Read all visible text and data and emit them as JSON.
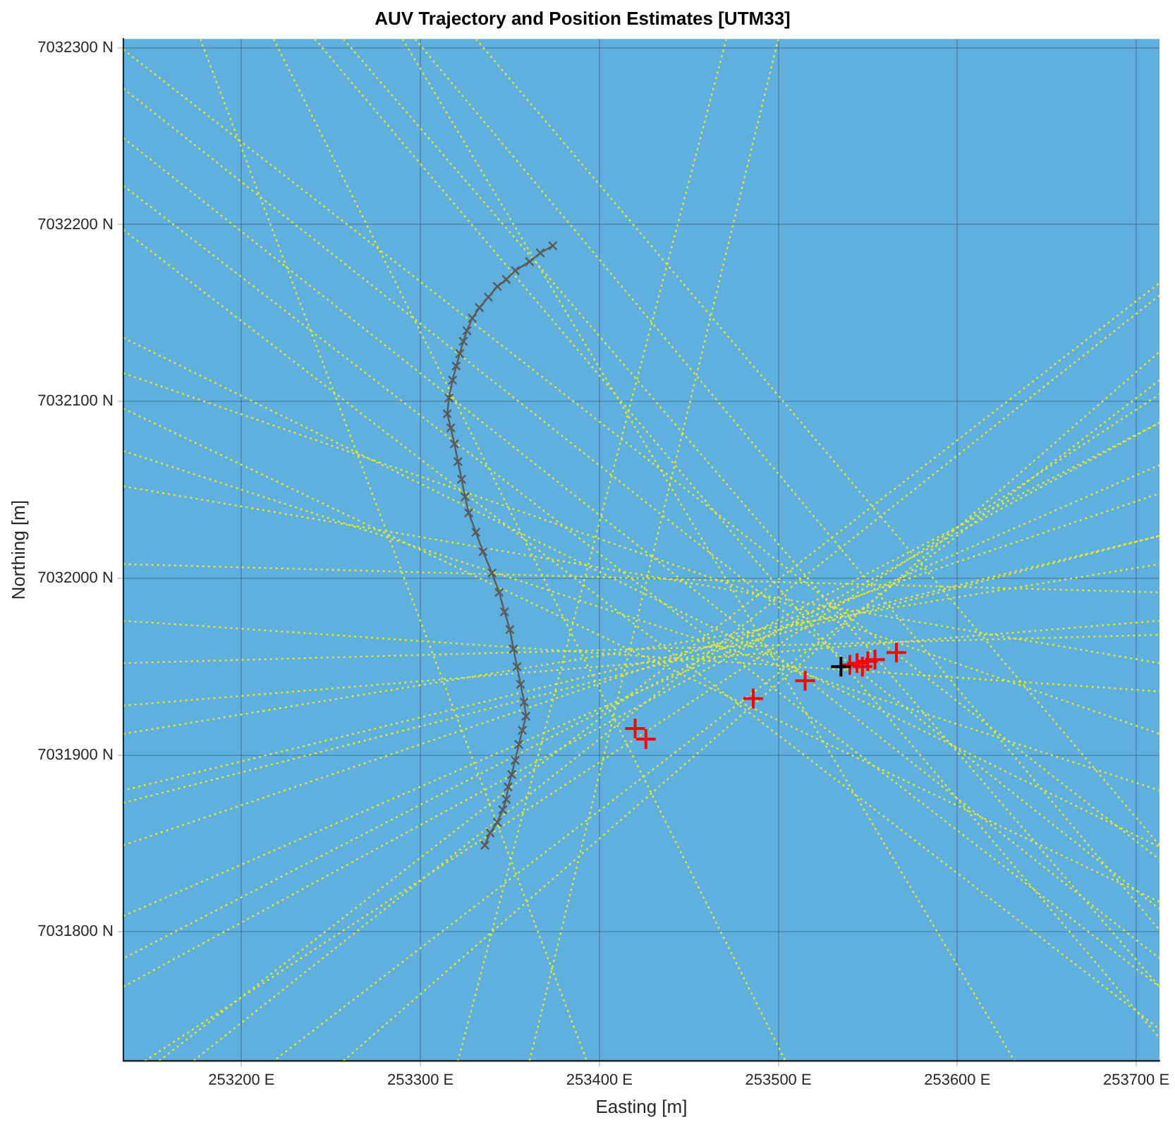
{
  "chart_data": {
    "type": "line",
    "title": "AUV Trajectory and Position Estimates [UTM33]",
    "xlabel": "Easting [m]",
    "ylabel": "Northing [m]",
    "xlim": [
      253134,
      253713
    ],
    "ylim": [
      7031727,
      7032305
    ],
    "xticks": [
      {
        "value": 253200,
        "label": "253200 E"
      },
      {
        "value": 253300,
        "label": "253300 E"
      },
      {
        "value": 253400,
        "label": "253400 E"
      },
      {
        "value": 253500,
        "label": "253500 E"
      },
      {
        "value": 253600,
        "label": "253600 E"
      },
      {
        "value": 253700,
        "label": "253700 E"
      }
    ],
    "yticks": [
      {
        "value": 7031800,
        "label": "7031800 N"
      },
      {
        "value": 7031900,
        "label": "7031900 N"
      },
      {
        "value": 7032000,
        "label": "7032000 N"
      },
      {
        "value": 7032100,
        "label": "7032100 N"
      },
      {
        "value": 7032200,
        "label": "7032200 N"
      },
      {
        "value": 7032300,
        "label": "7032300 N"
      }
    ],
    "grid": true,
    "legend": false,
    "marker": "none",
    "line_style": "dotted",
    "series": [
      {
        "type": "line",
        "color": "#e8e830",
        "x": [
          253134,
          253713
        ],
        "values": [
          7032277,
          7031813
        ]
      },
      {
        "type": "line",
        "color": "#e8e830",
        "x": [
          253134,
          253713
        ],
        "values": [
          7032249,
          7031785
        ]
      },
      {
        "type": "line",
        "color": "#e8e830",
        "x": [
          253134,
          253713
        ],
        "values": [
          7032222,
          7031769
        ]
      },
      {
        "type": "line",
        "color": "#e8e830",
        "x": [
          253134,
          253713
        ],
        "values": [
          7032197,
          7031745
        ]
      },
      {
        "type": "line",
        "color": "#e8e830",
        "x": [
          253134,
          253713
        ],
        "values": [
          7032136,
          7031848
        ]
      },
      {
        "type": "line",
        "color": "#e8e830",
        "x": [
          253134,
          253713
        ],
        "values": [
          7032116,
          7031912
        ]
      },
      {
        "type": "line",
        "color": "#e8e830",
        "x": [
          253134,
          253713
        ],
        "values": [
          7032096,
          7031817
        ]
      },
      {
        "type": "line",
        "color": "#e8e830",
        "x": [
          253134,
          253713
        ],
        "values": [
          7032072,
          7031880
        ]
      },
      {
        "type": "line",
        "color": "#e8e830",
        "x": [
          253134,
          253713
        ],
        "values": [
          7032052,
          7031952
        ]
      },
      {
        "type": "line",
        "color": "#e8e830",
        "x": [
          253134,
          253713
        ],
        "values": [
          7032008,
          7031992
        ]
      },
      {
        "type": "line",
        "color": "#e8e830",
        "x": [
          253134,
          253713
        ],
        "values": [
          7031976,
          7031936
        ]
      },
      {
        "type": "line",
        "color": "#e8e830",
        "x": [
          253134,
          253713
        ],
        "values": [
          7031952,
          7031968
        ]
      },
      {
        "type": "line",
        "color": "#e8e830",
        "x": [
          253134,
          253713
        ],
        "values": [
          7031928,
          7031976
        ]
      },
      {
        "type": "line",
        "color": "#e8e830",
        "x": [
          253134,
          253713
        ],
        "values": [
          7031912,
          7032008
        ]
      },
      {
        "type": "line",
        "color": "#e8e830",
        "x": [
          253134,
          253713
        ],
        "values": [
          7031873,
          7032024
        ]
      },
      {
        "type": "line",
        "color": "#e8e830",
        "x": [
          253134,
          253713
        ],
        "values": [
          7031849,
          7032048
        ]
      },
      {
        "type": "line",
        "color": "#e8e830",
        "x": [
          253134,
          253713
        ],
        "values": [
          7031809,
          7032064
        ]
      },
      {
        "type": "line",
        "color": "#e8e830",
        "x": [
          253134,
          253713
        ],
        "values": [
          7031769,
          7032088
        ]
      },
      {
        "type": "line",
        "color": "#e8e830",
        "x": [
          253146,
          253713
        ],
        "values": [
          7031727,
          7032104
        ]
      },
      {
        "type": "line",
        "color": "#e8e830",
        "x": [
          253154,
          253713
        ],
        "values": [
          7031727,
          7032167
        ]
      },
      {
        "type": "line",
        "color": "#e8e830",
        "x": [
          253257,
          253713
        ],
        "values": [
          7031727,
          7032128
        ]
      },
      {
        "type": "line",
        "color": "#e8e830",
        "x": [
          253177,
          253393
        ],
        "values": [
          7032305,
          7031727
        ]
      },
      {
        "type": "line",
        "color": "#e8e830",
        "x": [
          253218,
          253504
        ],
        "values": [
          7032305,
          7031727
        ]
      },
      {
        "type": "line",
        "color": "#e8e830",
        "x": [
          253241,
          253713
        ],
        "values": [
          7032305,
          7031740
        ]
      },
      {
        "type": "line",
        "color": "#e8e830",
        "x": [
          253257,
          253713
        ],
        "values": [
          7032305,
          7031769
        ]
      },
      {
        "type": "line",
        "color": "#e8e830",
        "x": [
          253290,
          253632
        ],
        "values": [
          7032305,
          7031727
        ]
      },
      {
        "type": "line",
        "color": "#e8e830",
        "x": [
          253297,
          253713
        ],
        "values": [
          7032305,
          7031801
        ]
      },
      {
        "type": "line",
        "color": "#e8e830",
        "x": [
          253331,
          253713
        ],
        "values": [
          7032305,
          7031849
        ]
      },
      {
        "type": "line",
        "color": "#e8e830",
        "x": [
          253471,
          253321
        ],
        "values": [
          7032305,
          7031727
        ]
      },
      {
        "type": "line",
        "color": "#e8e830",
        "x": [
          253500,
          253361
        ],
        "values": [
          7032305,
          7031727
        ]
      },
      {
        "type": "line",
        "color": "#e8e830",
        "x": [
          253713,
          253173
        ],
        "values": [
          7032160,
          7031727
        ]
      },
      {
        "type": "line",
        "color": "#e8e830",
        "x": [
          253713,
          253134
        ],
        "values": [
          7032088,
          7031785
        ]
      },
      {
        "type": "line",
        "color": "#e8e830",
        "x": [
          253713,
          253134
        ],
        "values": [
          7032024,
          7031880
        ]
      },
      {
        "type": "line",
        "color": "#e8e830",
        "x": [
          253713,
          253218
        ],
        "values": [
          7032112,
          7031727
        ]
      },
      {
        "type": "line",
        "color": "#e8e830",
        "x": [
          253134,
          253713
        ],
        "values": [
          7032299,
          7031841
        ]
      },
      {
        "type": "line",
        "color": "#5a5a5a",
        "marker": "cross",
        "line_style": "solid",
        "x": [
          253374,
          253367,
          253361,
          253353,
          253348,
          253343,
          253338,
          253333,
          253329,
          253326,
          253324,
          253322,
          253320,
          253318,
          253316,
          253315,
          253317,
          253319,
          253321,
          253323,
          253325,
          253327,
          253331,
          253335,
          253340,
          253344,
          253347,
          253350,
          253352,
          253354,
          253356,
          253358,
          253359,
          253357,
          253355,
          253353,
          253351,
          253349,
          253348,
          253346,
          253343,
          253339,
          253336
        ],
        "values": [
          7032188,
          7032184,
          7032179,
          7032174,
          7032169,
          7032165,
          7032159,
          7032153,
          7032147,
          7032140,
          7032134,
          7032127,
          7032120,
          7032112,
          7032102,
          7032093,
          7032085,
          7032076,
          7032066,
          7032056,
          7032046,
          7032037,
          7032026,
          7032015,
          7032003,
          7031992,
          7031981,
          7031971,
          7031960,
          7031950,
          7031940,
          7031930,
          7031922,
          7031914,
          7031906,
          7031897,
          7031889,
          7031882,
          7031875,
          7031869,
          7031862,
          7031856,
          7031849
        ]
      },
      {
        "type": "scatter",
        "color": "#ff0000",
        "marker": "cross",
        "x": [
          253420,
          253426,
          253486,
          253515,
          253540,
          253544,
          253547,
          253550,
          253554,
          253566
        ],
        "values": [
          7031915,
          7031909,
          7031932,
          7031942,
          7031951,
          7031952,
          7031950,
          7031953,
          7031954,
          7031958
        ]
      },
      {
        "type": "scatter",
        "color": "#000000",
        "marker": "cross",
        "x": [
          253535
        ],
        "values": [
          7031950
        ]
      }
    ]
  }
}
